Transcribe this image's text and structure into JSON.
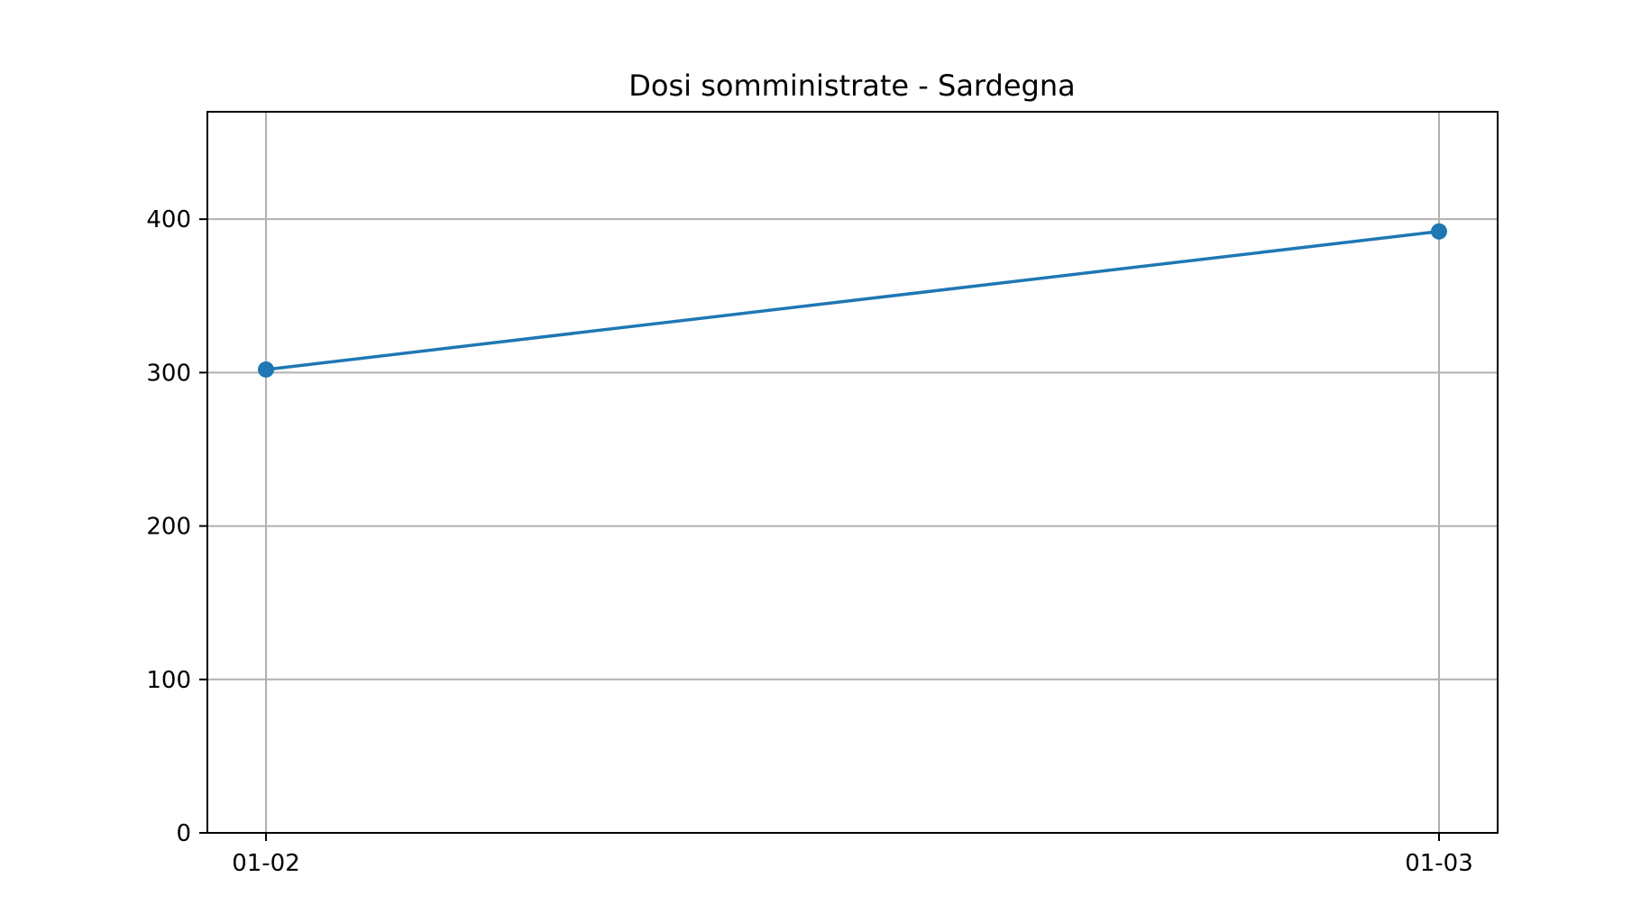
{
  "chart_data": {
    "type": "line",
    "title": "Dosi somministrate - Sardegna",
    "xlabel": "",
    "ylabel": "",
    "categories": [
      "01-02",
      "01-03"
    ],
    "series": [
      {
        "values": [
          302,
          392
        ],
        "color": "#1f77b4",
        "marker": "circle"
      }
    ],
    "ylim": [
      0,
      470
    ],
    "yticks": [
      0,
      100,
      200,
      300,
      400
    ],
    "ytick_labels": [
      "0",
      "100",
      "200",
      "300",
      "400"
    ],
    "grid": true,
    "legend": "none",
    "colors": {
      "grid": "#b0b0b0",
      "axes": "#000000",
      "series": "#1f77b4"
    }
  }
}
